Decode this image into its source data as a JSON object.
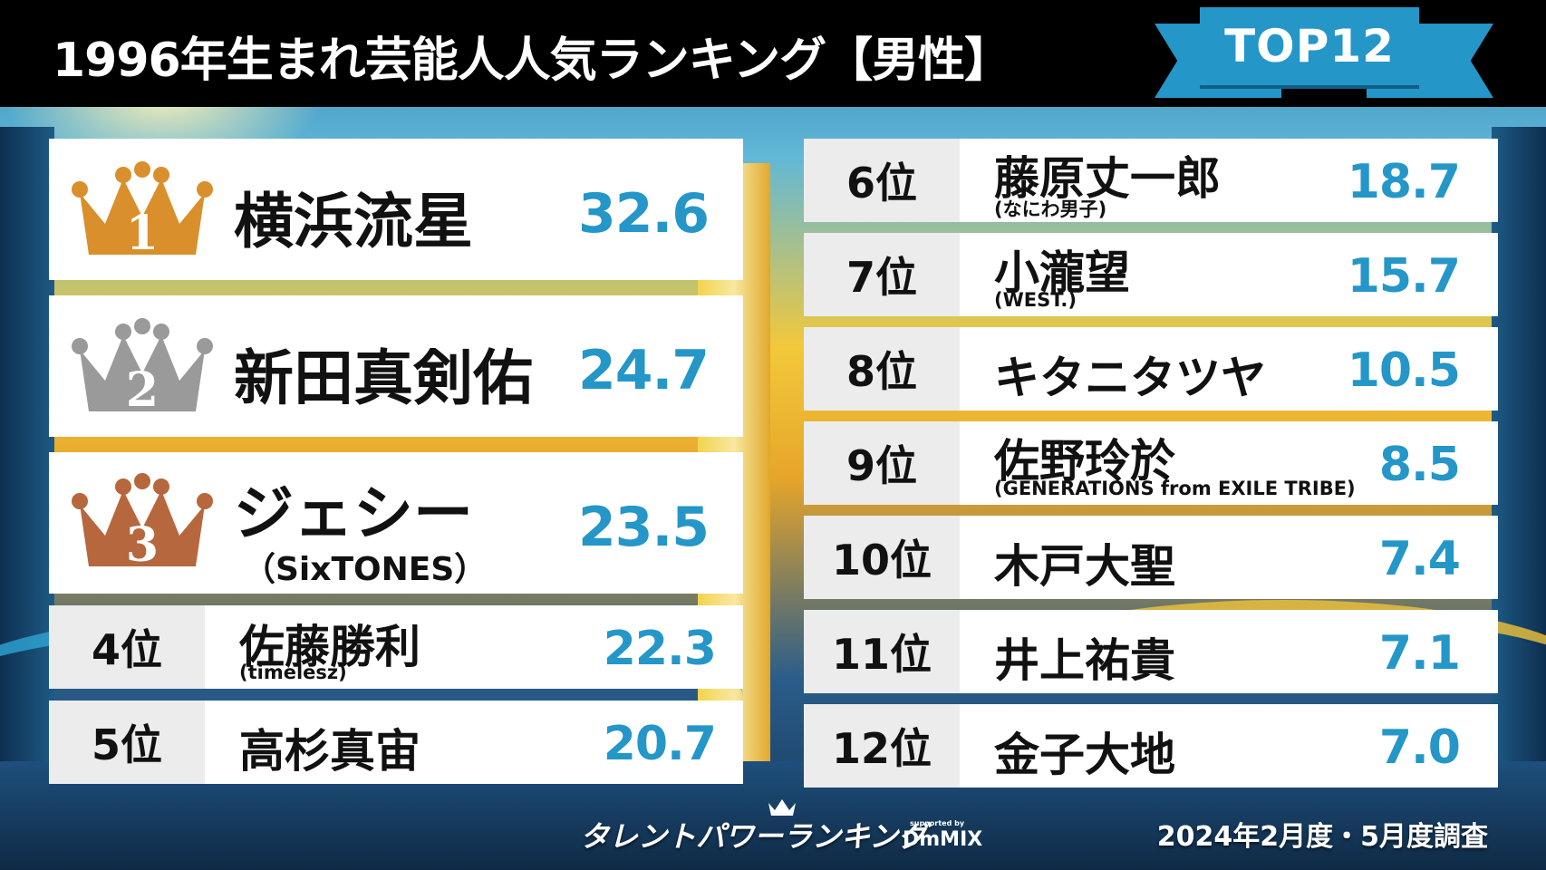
{
  "header": {
    "title": "1996年生まれ芸能人人気ランキング【男性】",
    "badge": "TOP12"
  },
  "rankings": [
    {
      "rank": "1",
      "name": "横浜流星",
      "group": "",
      "score": "32.6",
      "crown_color": "#d98f2c"
    },
    {
      "rank": "2",
      "name": "新田真剣佑",
      "group": "",
      "score": "24.7",
      "crown_color": "#9a9a9a"
    },
    {
      "rank": "3",
      "name": "ジェシー",
      "group": "（SixTONES）",
      "score": "23.5",
      "crown_color": "#b6673e"
    },
    {
      "rank": "4位",
      "name": "佐藤勝利",
      "group": "(timelesz)",
      "score": "22.3"
    },
    {
      "rank": "5位",
      "name": "高杉真宙",
      "group": "",
      "score": "20.7"
    },
    {
      "rank": "6位",
      "name": "藤原丈一郎",
      "group": "(なにわ男子)",
      "score": "18.7"
    },
    {
      "rank": "7位",
      "name": "小瀧望",
      "group": "(WEST.)",
      "score": "15.7"
    },
    {
      "rank": "8位",
      "name": "キタニタツヤ",
      "group": "",
      "score": "10.5"
    },
    {
      "rank": "9位",
      "name": "佐野玲於",
      "group": "(GENERATIONS from EXILE TRIBE)",
      "score": "8.5"
    },
    {
      "rank": "10位",
      "name": "木戸大聖",
      "group": "",
      "score": "7.4"
    },
    {
      "rank": "11位",
      "name": "井上祐貴",
      "group": "",
      "score": "7.1"
    },
    {
      "rank": "12位",
      "name": "金子大地",
      "group": "",
      "score": "7.0"
    }
  ],
  "footer": {
    "logo": "タレントパワーランキング",
    "sponsor_label": "supported by",
    "sponsor_name": "DmMIX",
    "survey_period": "2024年2月度・5月度調査"
  },
  "colors": {
    "accent": "#2596c8",
    "header_bg": "#000000",
    "rank_cell": "#ececec"
  }
}
